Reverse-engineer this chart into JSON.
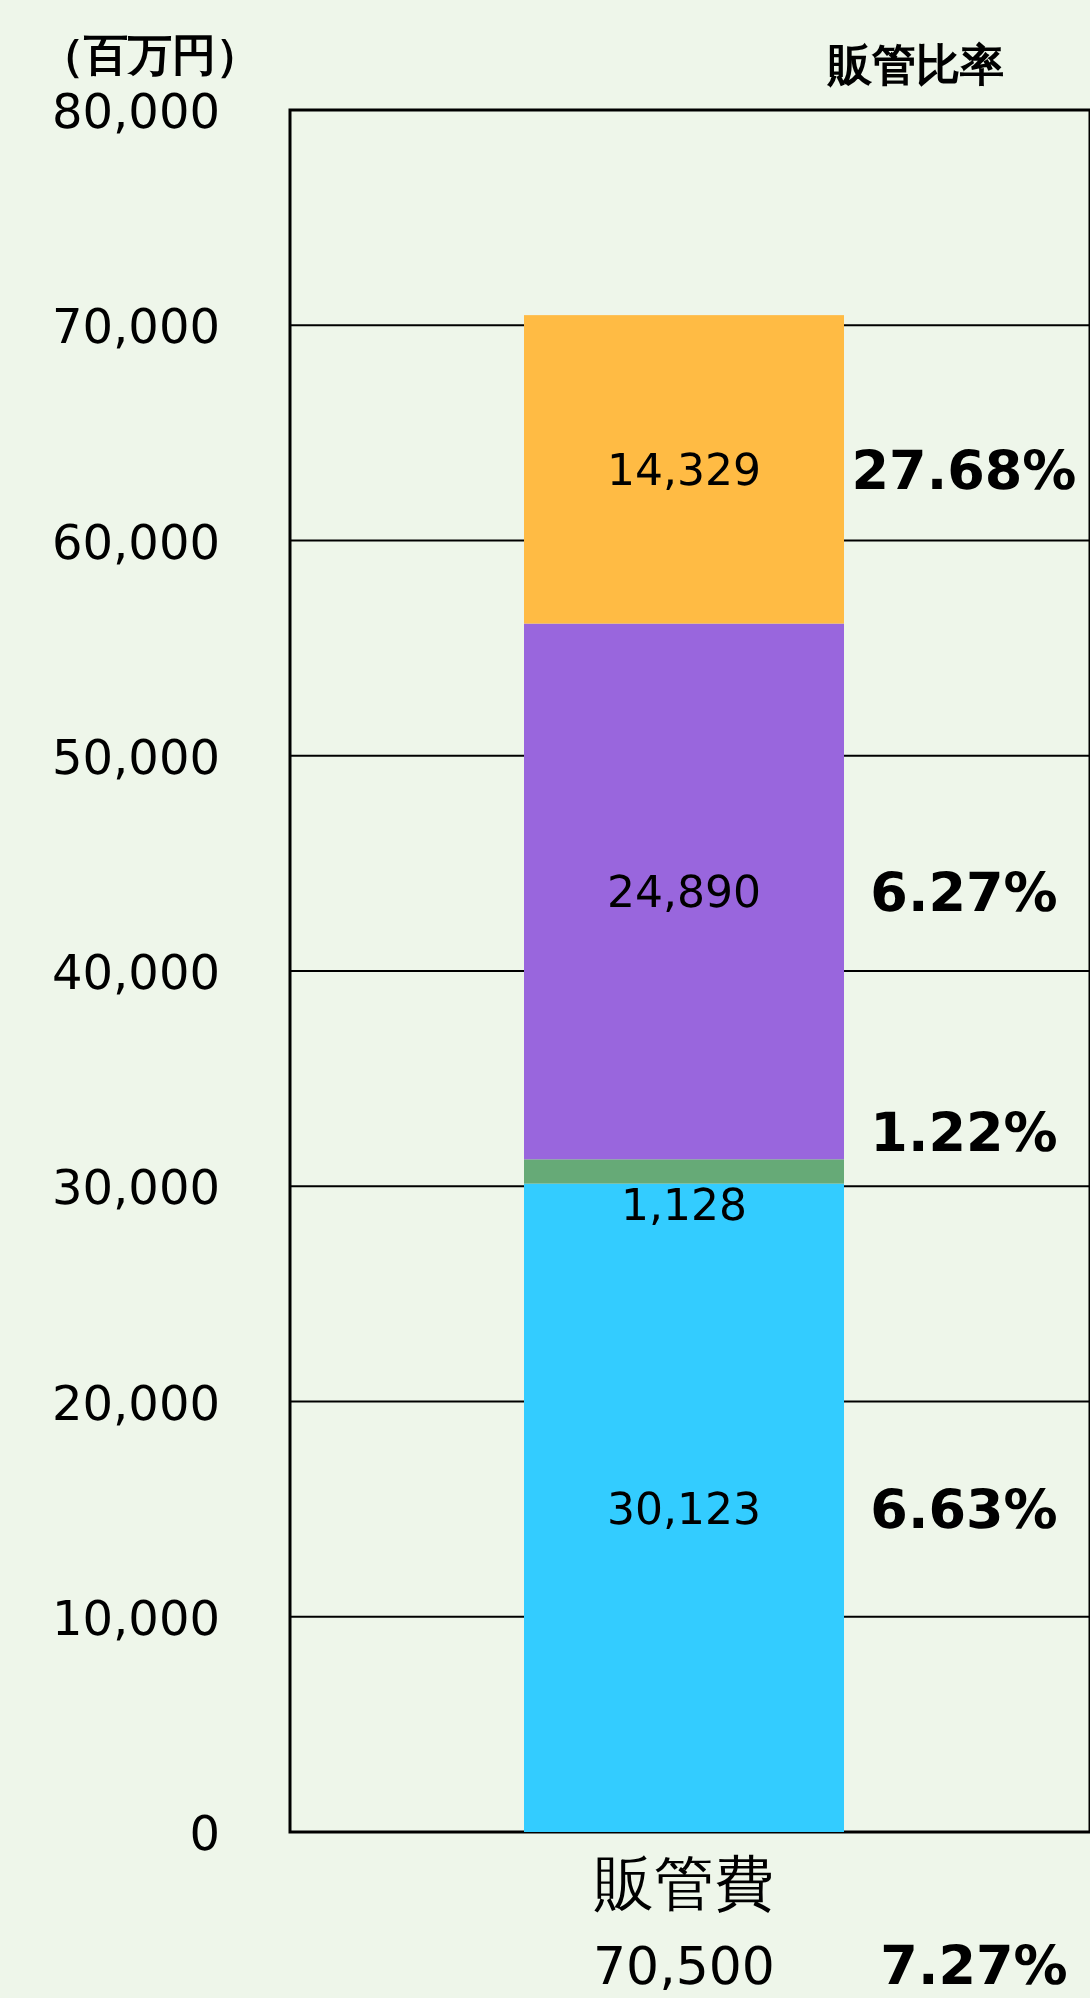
{
  "chart_data": {
    "type": "bar",
    "stacked": true,
    "title": "販管比率",
    "ylabel": "（百万円）",
    "categories": [
      "販管費"
    ],
    "series": [
      {
        "color": "#33ccff",
        "values": [
          30123
        ],
        "value_labels": [
          "30,123"
        ]
      },
      {
        "color": "#66aa77",
        "values": [
          1128
        ],
        "value_labels": [
          "1,128"
        ]
      },
      {
        "color": "#9966dd",
        "values": [
          24890
        ],
        "value_labels": [
          "24,890"
        ]
      },
      {
        "color": "#ffbb44",
        "values": [
          14329
        ],
        "value_labels": [
          "14,329"
        ]
      }
    ],
    "ylim": [
      0,
      80000
    ],
    "yticks": [
      {
        "value": 0,
        "label": "0"
      },
      {
        "value": 10000,
        "label": "10,000"
      },
      {
        "value": 20000,
        "label": "20,000"
      },
      {
        "value": 30000,
        "label": "30,000"
      },
      {
        "value": 40000,
        "label": "40,000"
      },
      {
        "value": 50000,
        "label": "50,000"
      },
      {
        "value": 60000,
        "label": "60,000"
      },
      {
        "value": 70000,
        "label": "70,000"
      },
      {
        "value": 80000,
        "label": "80,000"
      }
    ],
    "grid": "y",
    "annotations": [
      "27.68%",
      "6.27%",
      "1.22%",
      "6.63%",
      "70,500",
      "7.27%"
    ]
  }
}
